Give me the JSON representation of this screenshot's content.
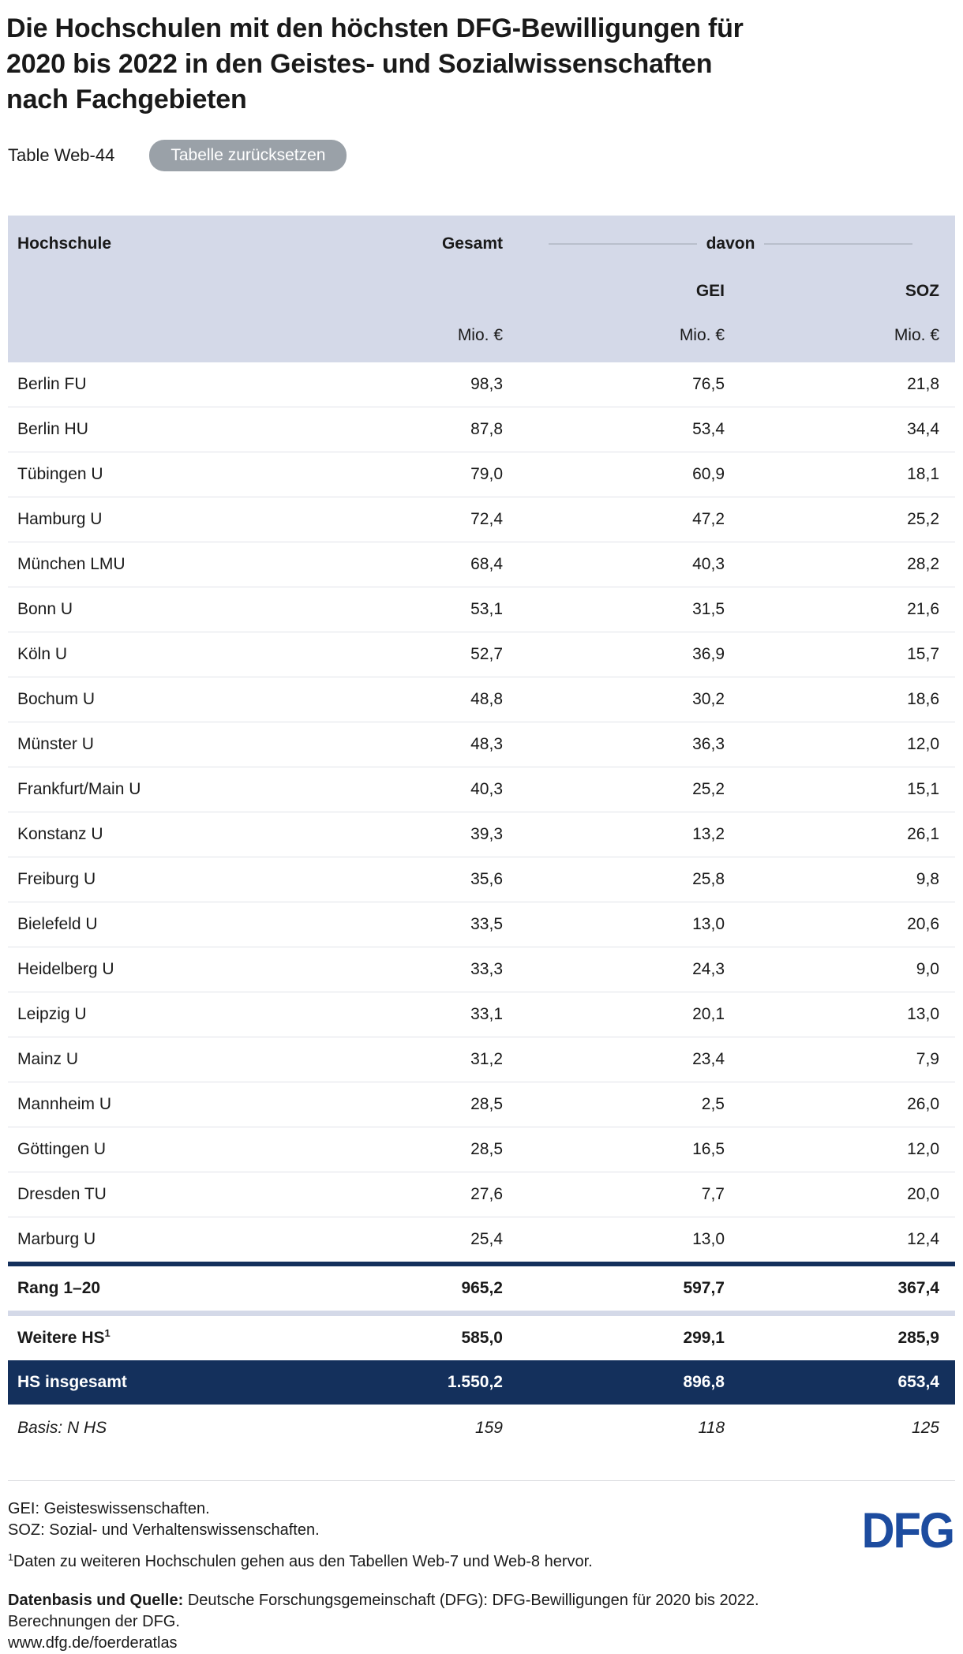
{
  "header": {
    "title_lines": [
      "Die Hochschulen mit den höchsten DFG-Bewilligungen für",
      "2020 bis 2022 in den Geistes- und Sozialwissenschaften",
      "nach Fachgebieten"
    ],
    "table_label": "Table Web-44",
    "reset_button": "Tabelle zurücksetzen"
  },
  "table": {
    "col_headers": {
      "hochschule": "Hochschule",
      "gesamt": "Gesamt",
      "davon": "davon",
      "gei": "GEI",
      "soz": "SOZ",
      "unit": "Mio. €"
    },
    "rows": [
      {
        "name": "Berlin FU",
        "gesamt": "98,3",
        "gei": "76,5",
        "soz": "21,8"
      },
      {
        "name": "Berlin HU",
        "gesamt": "87,8",
        "gei": "53,4",
        "soz": "34,4"
      },
      {
        "name": "Tübingen U",
        "gesamt": "79,0",
        "gei": "60,9",
        "soz": "18,1"
      },
      {
        "name": "Hamburg U",
        "gesamt": "72,4",
        "gei": "47,2",
        "soz": "25,2"
      },
      {
        "name": "München LMU",
        "gesamt": "68,4",
        "gei": "40,3",
        "soz": "28,2"
      },
      {
        "name": "Bonn U",
        "gesamt": "53,1",
        "gei": "31,5",
        "soz": "21,6"
      },
      {
        "name": "Köln U",
        "gesamt": "52,7",
        "gei": "36,9",
        "soz": "15,7"
      },
      {
        "name": "Bochum U",
        "gesamt": "48,8",
        "gei": "30,2",
        "soz": "18,6"
      },
      {
        "name": "Münster U",
        "gesamt": "48,3",
        "gei": "36,3",
        "soz": "12,0"
      },
      {
        "name": "Frankfurt/Main U",
        "gesamt": "40,3",
        "gei": "25,2",
        "soz": "15,1"
      },
      {
        "name": "Konstanz U",
        "gesamt": "39,3",
        "gei": "13,2",
        "soz": "26,1"
      },
      {
        "name": "Freiburg U",
        "gesamt": "35,6",
        "gei": "25,8",
        "soz": "9,8"
      },
      {
        "name": "Bielefeld U",
        "gesamt": "33,5",
        "gei": "13,0",
        "soz": "20,6"
      },
      {
        "name": "Heidelberg U",
        "gesamt": "33,3",
        "gei": "24,3",
        "soz": "9,0"
      },
      {
        "name": "Leipzig U",
        "gesamt": "33,1",
        "gei": "20,1",
        "soz": "13,0"
      },
      {
        "name": "Mainz U",
        "gesamt": "31,2",
        "gei": "23,4",
        "soz": "7,9"
      },
      {
        "name": "Mannheim U",
        "gesamt": "28,5",
        "gei": "2,5",
        "soz": "26,0"
      },
      {
        "name": "Göttingen U",
        "gesamt": "28,5",
        "gei": "16,5",
        "soz": "12,0"
      },
      {
        "name": "Dresden TU",
        "gesamt": "27,6",
        "gei": "7,7",
        "soz": "20,0"
      },
      {
        "name": "Marburg U",
        "gesamt": "25,4",
        "gei": "13,0",
        "soz": "12,4"
      }
    ],
    "summary": {
      "rang": {
        "label": "Rang 1–20",
        "gesamt": "965,2",
        "gei": "597,7",
        "soz": "367,4"
      },
      "weitere": {
        "label": "Weitere HS",
        "sup": "1",
        "gesamt": "585,0",
        "gei": "299,1",
        "soz": "285,9"
      },
      "insgesamt": {
        "label": "HS insgesamt",
        "gesamt": "1.550,2",
        "gei": "896,8",
        "soz": "653,4"
      },
      "basis": {
        "label": "Basis: N HS",
        "gesamt": "159",
        "gei": "118",
        "soz": "125"
      }
    }
  },
  "footer": {
    "notes": [
      "GEI: Geisteswissenschaften.",
      "SOZ: Sozial- und Verhaltenswissenschaften."
    ],
    "footnote_sup": "1",
    "footnote": "Daten zu weiteren Hochschulen gehen aus den Tabellen Web-7 und Web-8 hervor.",
    "source_label": "Datenbasis und Quelle:",
    "source_text": "Deutsche Forschungsgemeinschaft (DFG): DFG-Bewilligungen für 2020 bis 2022.",
    "calc_line": "Berechnungen der DFG.",
    "url": "www.dfg.de/foerderatlas",
    "logo_text": "DFG"
  },
  "colors": {
    "navy": "#14305c",
    "header_band": "#d4d9e8",
    "logo_blue": "#1d4c9f",
    "button_gray": "#9aa1a8",
    "row_line": "#e1e3e9",
    "text": "#1a1a1a"
  },
  "chart_data": {
    "type": "table",
    "title": "Die Hochschulen mit den höchsten DFG-Bewilligungen für 2020 bis 2022 in den Geistes- und Sozialwissenschaften nach Fachgebieten",
    "table_id": "Table Web-44",
    "unit": "Mio. €",
    "columns": [
      "Hochschule",
      "Gesamt",
      "GEI",
      "SOZ"
    ],
    "column_notes": {
      "GEI": "Geisteswissenschaften",
      "SOZ": "Sozial- und Verhaltenswissenschaften"
    },
    "rows": [
      [
        "Berlin FU",
        98.3,
        76.5,
        21.8
      ],
      [
        "Berlin HU",
        87.8,
        53.4,
        34.4
      ],
      [
        "Tübingen U",
        79.0,
        60.9,
        18.1
      ],
      [
        "Hamburg U",
        72.4,
        47.2,
        25.2
      ],
      [
        "München LMU",
        68.4,
        40.3,
        28.2
      ],
      [
        "Bonn U",
        53.1,
        31.5,
        21.6
      ],
      [
        "Köln U",
        52.7,
        36.9,
        15.7
      ],
      [
        "Bochum U",
        48.8,
        30.2,
        18.6
      ],
      [
        "Münster U",
        48.3,
        36.3,
        12.0
      ],
      [
        "Frankfurt/Main U",
        40.3,
        25.2,
        15.1
      ],
      [
        "Konstanz U",
        39.3,
        13.2,
        26.1
      ],
      [
        "Freiburg U",
        35.6,
        25.8,
        9.8
      ],
      [
        "Bielefeld U",
        33.5,
        13.0,
        20.6
      ],
      [
        "Heidelberg U",
        33.3,
        24.3,
        9.0
      ],
      [
        "Leipzig U",
        33.1,
        20.1,
        13.0
      ],
      [
        "Mainz U",
        31.2,
        23.4,
        7.9
      ],
      [
        "Mannheim U",
        28.5,
        2.5,
        26.0
      ],
      [
        "Göttingen U",
        28.5,
        16.5,
        12.0
      ],
      [
        "Dresden TU",
        27.6,
        7.7,
        20.0
      ],
      [
        "Marburg U",
        25.4,
        13.0,
        12.4
      ]
    ],
    "summary_rows": [
      [
        "Rang 1–20",
        965.2,
        597.7,
        367.4
      ],
      [
        "Weitere HS (1)",
        585.0,
        299.1,
        285.9
      ],
      [
        "HS insgesamt",
        1550.2,
        896.8,
        653.4
      ],
      [
        "Basis: N HS",
        159,
        118,
        125
      ]
    ]
  }
}
